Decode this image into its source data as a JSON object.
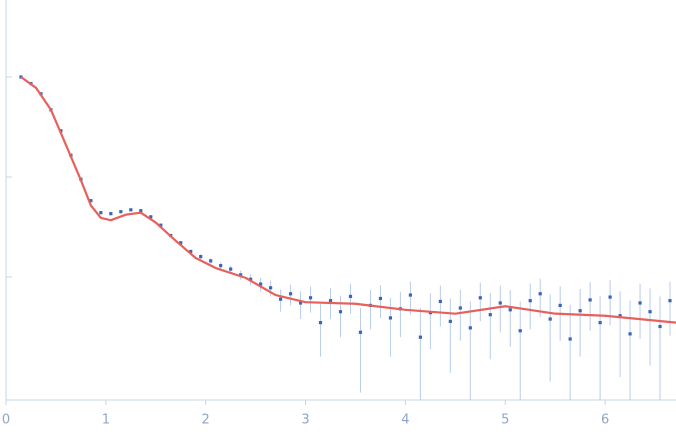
{
  "chart_data": {
    "type": "scatter",
    "xlim": [
      0,
      6.71
    ],
    "xticks": [
      0,
      1,
      2,
      3,
      4,
      5,
      6
    ],
    "ylim": [
      0.000589,
      5.89
    ],
    "yticks": [
      0.01,
      0.1,
      1
    ],
    "log_y": true,
    "series": [
      {
        "type": "scatter",
        "color": "#3a66b8",
        "error_color": "#b8cce8",
        "x": [
          0.15,
          0.25,
          0.35,
          0.45,
          0.55,
          0.65,
          0.75,
          0.85,
          0.95,
          1.05,
          1.15,
          1.25,
          1.35,
          1.45,
          1.55,
          1.65,
          1.75,
          1.85,
          1.95,
          2.05,
          2.15,
          2.25,
          2.35,
          2.45,
          2.55,
          2.65,
          2.75,
          2.85,
          2.95,
          3.05,
          3.15,
          3.25,
          3.35,
          3.45,
          3.55,
          3.65,
          3.75,
          3.85,
          3.95,
          4.05,
          4.15,
          4.25,
          4.35,
          4.45,
          4.55,
          4.65,
          4.75,
          4.85,
          4.95,
          5.05,
          5.15,
          5.25,
          5.35,
          5.45,
          5.55,
          5.65,
          5.75,
          5.85,
          5.95,
          6.05,
          6.15,
          6.25,
          6.35,
          6.45,
          6.55,
          6.65
        ],
        "values": [
          1.0,
          0.86,
          0.68,
          0.47,
          0.29,
          0.165,
          0.095,
          0.058,
          0.044,
          0.043,
          0.045,
          0.047,
          0.046,
          0.04,
          0.033,
          0.026,
          0.022,
          0.018,
          0.016,
          0.0145,
          0.013,
          0.012,
          0.0105,
          0.0095,
          0.0085,
          0.0078,
          0.006,
          0.0068,
          0.0055,
          0.0062,
          0.0035,
          0.0058,
          0.0045,
          0.0064,
          0.0028,
          0.0052,
          0.0061,
          0.0039,
          0.0048,
          0.0066,
          0.0025,
          0.0044,
          0.0057,
          0.0036,
          0.0049,
          0.0031,
          0.0062,
          0.0042,
          0.0055,
          0.0047,
          0.0029,
          0.0058,
          0.0068,
          0.0038,
          0.0052,
          0.0024,
          0.0046,
          0.0059,
          0.0035,
          0.0063,
          0.0041,
          0.0027,
          0.0055,
          0.0045,
          0.0032,
          0.0058
        ],
        "errors": [
          0.01,
          0.008,
          0.006,
          0.004,
          0.003,
          0.002,
          0.0012,
          0.0008,
          0.0006,
          0.0006,
          0.0006,
          0.0007,
          0.0007,
          0.0007,
          0.0007,
          0.0007,
          0.0008,
          0.0008,
          0.0009,
          0.0009,
          0.001,
          0.001,
          0.0011,
          0.0012,
          0.0013,
          0.0014,
          0.0015,
          0.0016,
          0.0017,
          0.0018,
          0.0019,
          0.002,
          0.002,
          0.0021,
          0.0021,
          0.0022,
          0.0022,
          0.0023,
          0.0023,
          0.0024,
          0.0024,
          0.0025,
          0.0025,
          0.0025,
          0.0026,
          0.0026,
          0.0026,
          0.0027,
          0.0027,
          0.0027,
          0.0028,
          0.0028,
          0.0028,
          0.0029,
          0.0029,
          0.0029,
          0.003,
          0.003,
          0.003,
          0.003,
          0.0031,
          0.0031,
          0.0031,
          0.0032,
          0.0032,
          0.0032
        ]
      },
      {
        "type": "line",
        "color": "#e8605c",
        "x": [
          0.15,
          0.3,
          0.45,
          0.6,
          0.75,
          0.85,
          0.95,
          1.05,
          1.2,
          1.35,
          1.5,
          1.7,
          1.9,
          2.1,
          2.4,
          2.7,
          3.0,
          3.5,
          4.0,
          4.5,
          5.0,
          5.5,
          6.0,
          6.71
        ],
        "values": [
          1.0,
          0.78,
          0.47,
          0.21,
          0.093,
          0.052,
          0.039,
          0.037,
          0.042,
          0.044,
          0.035,
          0.023,
          0.0155,
          0.0123,
          0.0098,
          0.0066,
          0.0056,
          0.0054,
          0.0047,
          0.0043,
          0.0051,
          0.0043,
          0.0041,
          0.0035
        ]
      }
    ]
  }
}
